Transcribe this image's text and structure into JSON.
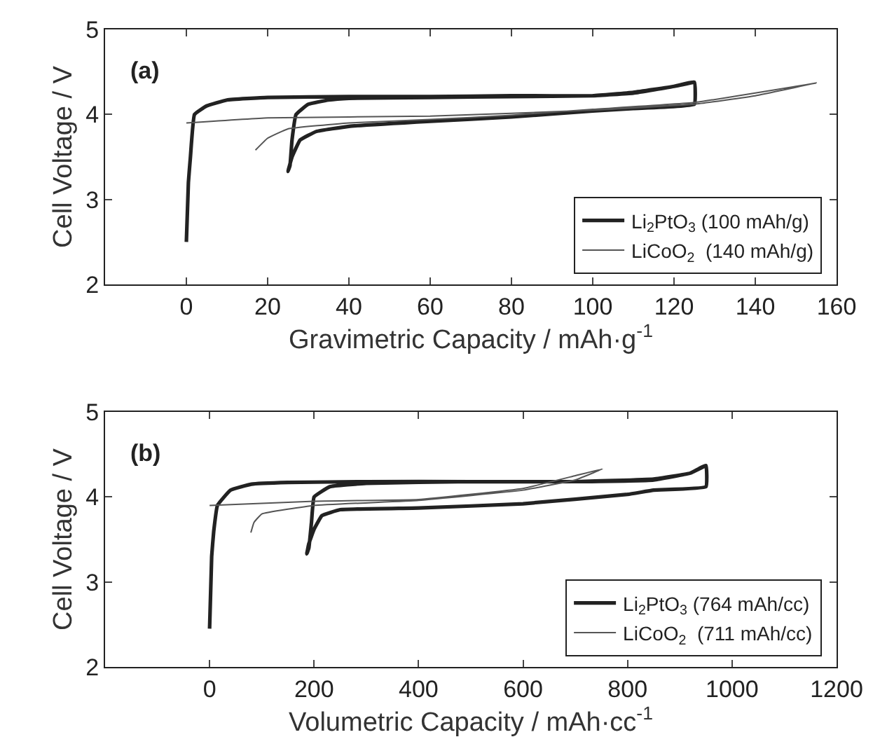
{
  "chart_data": [
    {
      "type": "line",
      "xlabel": "Gravimetric Capacity / mAh·g$^{-1}$",
      "ylabel": "Cell Voltage / V",
      "annotations": [
        "(a)"
      ],
      "xlim": [
        -20,
        160
      ],
      "xticks": [
        0,
        20,
        40,
        60,
        80,
        100,
        120,
        140,
        160
      ],
      "ylim": [
        2,
        5
      ],
      "yticks": [
        2,
        3,
        4,
        5
      ],
      "legend": "bottom right",
      "series": [
        {
          "name": "Li$_{2}$PtO$_{3}$ (100 mAh/g)",
          "color": "#222222",
          "x": [
            0,
            0.5,
            1,
            2,
            5,
            10,
            20,
            40,
            60,
            80,
            100,
            110,
            120,
            125,
            125,
            110,
            100,
            80,
            60,
            40,
            32,
            28,
            26,
            25,
            25.5,
            26,
            27,
            30,
            35,
            40,
            60,
            80,
            100,
            110,
            120,
            125
          ],
          "values": [
            2.5,
            3.2,
            3.5,
            4.0,
            4.1,
            4.17,
            4.2,
            4.21,
            4.21,
            4.22,
            4.22,
            4.25,
            4.33,
            4.38,
            4.12,
            4.07,
            4.04,
            3.97,
            3.92,
            3.86,
            3.8,
            3.7,
            3.5,
            3.33,
            3.4,
            3.7,
            4.0,
            4.12,
            4.17,
            4.19,
            4.2,
            4.21,
            4.22,
            4.26,
            4.33,
            4.38
          ]
        },
        {
          "name": "LiCoO$_{2}$  (140 mAh/g)",
          "color": "#555555",
          "x": [
            0,
            20,
            60,
            100,
            125,
            140,
            155,
            150,
            125,
            100,
            80,
            60,
            40,
            25,
            20,
            17
          ],
          "values": [
            3.9,
            3.96,
            3.98,
            4.05,
            4.12,
            4.22,
            4.37,
            4.33,
            4.14,
            4.06,
            3.99,
            3.94,
            3.9,
            3.83,
            3.72,
            3.58
          ]
        }
      ]
    },
    {
      "type": "line",
      "xlabel": "Volumetric Capacity / mAh·cc$^{-1}$",
      "ylabel": "Cell Voltage / V",
      "annotations": [
        "(b)"
      ],
      "xlim": [
        -200,
        1200
      ],
      "xticks": [
        0,
        200,
        400,
        600,
        800,
        1000,
        1200
      ],
      "ylim": [
        2,
        5
      ],
      "yticks": [
        2,
        3,
        4,
        5
      ],
      "legend": "bottom right",
      "series": [
        {
          "name": "Li$_{2}$PtO$_{3}$ (764 mAh/cc)",
          "color": "#222222",
          "x": [
            0,
            4,
            8,
            15,
            40,
            80,
            150,
            300,
            500,
            700,
            850,
            920,
            950,
            950,
            850,
            800,
            600,
            400,
            250,
            215,
            200,
            190,
            186,
            190,
            195,
            200,
            230,
            300,
            500,
            700,
            850,
            920,
            950
          ],
          "values": [
            2.45,
            3.3,
            3.6,
            3.9,
            4.08,
            4.15,
            4.17,
            4.18,
            4.18,
            4.18,
            4.2,
            4.28,
            4.37,
            4.12,
            4.08,
            4.03,
            3.92,
            3.87,
            3.85,
            3.78,
            3.62,
            3.45,
            3.33,
            3.4,
            3.7,
            4.0,
            4.12,
            4.16,
            4.18,
            4.18,
            4.21,
            4.28,
            4.37
          ]
        },
        {
          "name": "LiCoO$_{2}$  (711 mAh/cc)",
          "color": "#555555",
          "x": [
            0,
            200,
            400,
            600,
            700,
            752,
            700,
            600,
            400,
            200,
            100,
            85,
            79
          ],
          "values": [
            3.9,
            3.95,
            3.97,
            4.1,
            4.25,
            4.33,
            4.2,
            4.08,
            3.96,
            3.9,
            3.8,
            3.7,
            3.58
          ]
        }
      ]
    }
  ]
}
